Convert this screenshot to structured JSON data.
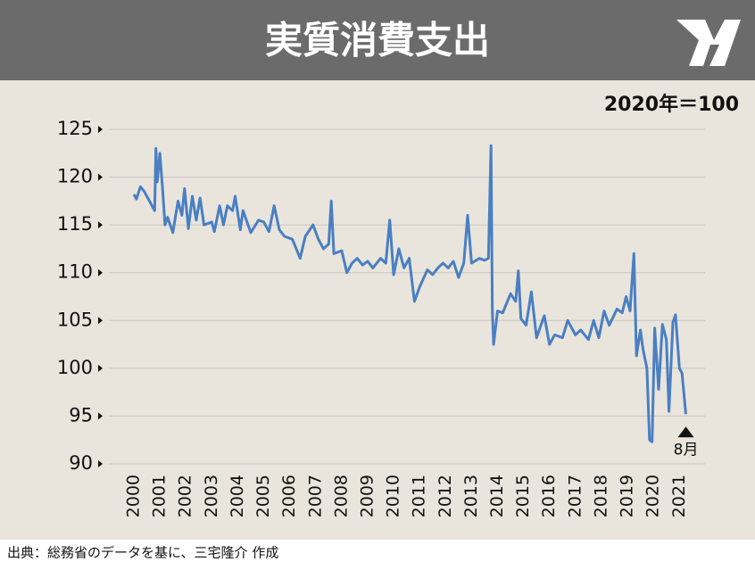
{
  "chart_data": {
    "type": "line",
    "title": "実質消費支出",
    "unit_note": "2020年＝100",
    "annotation": "8月",
    "source": "出典：総務省のデータを基に、三宅隆介 作成",
    "color": "#4a7fc1",
    "grid": true,
    "xlim": [
      2000,
      2021.3
    ],
    "xticks": [
      2000,
      2001,
      2002,
      2003,
      2004,
      2005,
      2006,
      2007,
      2008,
      2009,
      2010,
      2011,
      2012,
      2013,
      2014,
      2015,
      2016,
      2017,
      2018,
      2019,
      2020,
      2021
    ],
    "ylim": [
      90,
      125
    ],
    "yticks": [
      90,
      95,
      100,
      105,
      110,
      115,
      120,
      125
    ],
    "x": [
      2000.0,
      2000.1,
      2000.25,
      2000.4,
      2000.6,
      2000.8,
      2000.85,
      2000.9,
      2001.0,
      2001.1,
      2001.2,
      2001.3,
      2001.5,
      2001.7,
      2001.85,
      2001.95,
      2002.1,
      2002.25,
      2002.4,
      2002.55,
      2002.7,
      2003.0,
      2003.1,
      2003.3,
      2003.45,
      2003.6,
      2003.8,
      2003.9,
      2004.1,
      2004.2,
      2004.5,
      2004.8,
      2005.0,
      2005.2,
      2005.4,
      2005.6,
      2005.8,
      2006.1,
      2006.4,
      2006.6,
      2006.9,
      2007.1,
      2007.3,
      2007.5,
      2007.6,
      2007.7,
      2008.0,
      2008.2,
      2008.4,
      2008.6,
      2008.8,
      2009.0,
      2009.2,
      2009.5,
      2009.7,
      2009.85,
      2010.0,
      2010.2,
      2010.4,
      2010.6,
      2010.8,
      2011.0,
      2011.3,
      2011.5,
      2011.7,
      2011.9,
      2012.1,
      2012.3,
      2012.5,
      2012.7,
      2012.85,
      2013.0,
      2013.3,
      2013.5,
      2013.65,
      2013.75,
      2013.8,
      2013.85,
      2014.0,
      2014.2,
      2014.5,
      2014.7,
      2014.8,
      2014.9,
      2015.1,
      2015.3,
      2015.5,
      2015.8,
      2016.0,
      2016.2,
      2016.5,
      2016.7,
      2017.0,
      2017.2,
      2017.5,
      2017.7,
      2017.9,
      2018.1,
      2018.3,
      2018.6,
      2018.8,
      2018.95,
      2019.1,
      2019.25,
      2019.35,
      2019.5,
      2019.6,
      2019.75,
      2019.85,
      2019.95,
      2020.05,
      2020.2,
      2020.35,
      2020.5,
      2020.6,
      2020.75,
      2020.85,
      2021.0,
      2021.1,
      2021.25
    ],
    "values": [
      118.2,
      117.7,
      119,
      118.5,
      117.5,
      116.5,
      123,
      119.5,
      122.5,
      119,
      115,
      115.8,
      114.2,
      117.5,
      116,
      118.8,
      114.6,
      118,
      115.5,
      117.8,
      115,
      115.3,
      114.3,
      117,
      115,
      117,
      116.5,
      118,
      114.5,
      116.5,
      114.2,
      115.5,
      115.3,
      114.3,
      117,
      114.5,
      113.8,
      113.5,
      111.5,
      113.8,
      115,
      113.5,
      112.5,
      113,
      117.5,
      112,
      112.3,
      110,
      111,
      111.5,
      110.8,
      111.2,
      110.5,
      111.5,
      111,
      115.5,
      109.8,
      112.5,
      110.5,
      111.5,
      107,
      108.5,
      110.3,
      109.8,
      110.5,
      111,
      110.5,
      111.2,
      109.5,
      111,
      116,
      111,
      111.5,
      111.3,
      111.5,
      123.3,
      106,
      102.5,
      106,
      105.8,
      107.8,
      107,
      110.2,
      105.2,
      104.5,
      108,
      103.2,
      105.5,
      102.5,
      103.5,
      103.2,
      105,
      103.5,
      104,
      103,
      105,
      103.2,
      106,
      104.5,
      106.2,
      105.8,
      107.5,
      106,
      112,
      101.3,
      104,
      102,
      100,
      92.5,
      92.3,
      104.2,
      97.8,
      104.6,
      103,
      95.5,
      104.8,
      105.6,
      100,
      99.5,
      95.2
    ]
  }
}
